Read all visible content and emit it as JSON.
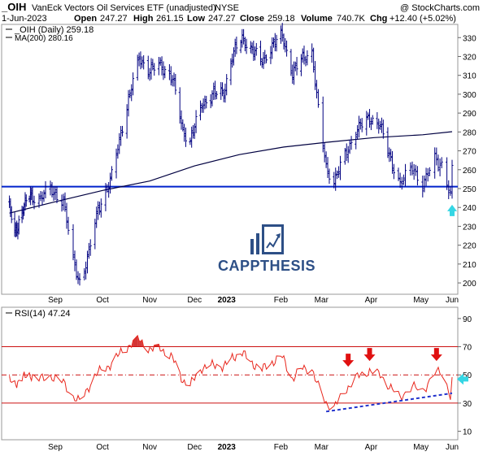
{
  "header": {
    "symbol": "_OIH",
    "name": "VanEck Vectors Oil Services ETF (unadjusted)",
    "exchange": "NYSE",
    "credit": "@ StockCharts.com",
    "date": "1-Jun-2023",
    "open_label": "Open",
    "open": "247.27",
    "high_label": "High",
    "high": "261.15",
    "low_label": "Low",
    "low": "247.27",
    "close_label": "Close",
    "close": "259.18",
    "volume_label": "Volume",
    "volume": "740.7K",
    "chg_label": "Chg",
    "chg": "+12.40 (+5.02%)"
  },
  "legend": {
    "price": "_OIH (Daily) 259.18",
    "ma": "MA(200) 280.16",
    "rsi": "RSI(14) 47.24"
  },
  "watermark": "CAPPTHESIS",
  "colors": {
    "price_bars": "#000080",
    "ma_line": "#000040",
    "support_line": "#0022cc",
    "rsi_line": "#e8261c",
    "rsi_band": "#cc1111",
    "trendline": "#2233cc",
    "arrow_red": "#e01010",
    "arrow_cyan": "#35d6e4",
    "logo": "#2d4f86"
  },
  "chart_data": [
    {
      "type": "ohlc",
      "title": "_OIH (Daily) 259.18",
      "x_ticks": [
        "Sep",
        "Oct",
        "Nov",
        "Dec",
        "2023",
        "Feb",
        "Mar",
        "Apr",
        "May",
        "Jun"
      ],
      "y_ticks": [
        200,
        210,
        220,
        230,
        240,
        250,
        260,
        270,
        280,
        290,
        300,
        310,
        320,
        330
      ],
      "ylim": [
        194,
        337
      ],
      "grid": false,
      "price_anchors": [
        {
          "date": "2022-08-10",
          "close": 240
        },
        {
          "date": "2022-08-15",
          "close": 226
        },
        {
          "date": "2022-08-22",
          "close": 238
        },
        {
          "date": "2022-08-30",
          "close": 247
        },
        {
          "date": "2022-09-05",
          "close": 244
        },
        {
          "date": "2022-09-12",
          "close": 250
        },
        {
          "date": "2022-09-20",
          "close": 243
        },
        {
          "date": "2022-09-26",
          "close": 212
        },
        {
          "date": "2022-09-30",
          "close": 201
        },
        {
          "date": "2022-10-05",
          "close": 212
        },
        {
          "date": "2022-10-12",
          "close": 240
        },
        {
          "date": "2022-10-20",
          "close": 253
        },
        {
          "date": "2022-10-27",
          "close": 280
        },
        {
          "date": "2022-11-03",
          "close": 303
        },
        {
          "date": "2022-11-08",
          "close": 320
        },
        {
          "date": "2022-11-15",
          "close": 312
        },
        {
          "date": "2022-11-22",
          "close": 316
        },
        {
          "date": "2022-11-30",
          "close": 308
        },
        {
          "date": "2022-12-07",
          "close": 281
        },
        {
          "date": "2022-12-12",
          "close": 275
        },
        {
          "date": "2022-12-20",
          "close": 295
        },
        {
          "date": "2022-12-28",
          "close": 300
        },
        {
          "date": "2023-01-04",
          "close": 301
        },
        {
          "date": "2023-01-10",
          "close": 320
        },
        {
          "date": "2023-01-17",
          "close": 330
        },
        {
          "date": "2023-01-24",
          "close": 323
        },
        {
          "date": "2023-01-31",
          "close": 318
        },
        {
          "date": "2023-02-07",
          "close": 325
        },
        {
          "date": "2023-02-14",
          "close": 332
        },
        {
          "date": "2023-02-21",
          "close": 310
        },
        {
          "date": "2023-02-28",
          "close": 320
        },
        {
          "date": "2023-03-06",
          "close": 322
        },
        {
          "date": "2023-03-09",
          "close": 298
        },
        {
          "date": "2023-03-15",
          "close": 262
        },
        {
          "date": "2023-03-20",
          "close": 253
        },
        {
          "date": "2023-03-28",
          "close": 270
        },
        {
          "date": "2023-04-03",
          "close": 280
        },
        {
          "date": "2023-04-12",
          "close": 288
        },
        {
          "date": "2023-04-19",
          "close": 283
        },
        {
          "date": "2023-04-25",
          "close": 268
        },
        {
          "date": "2023-05-02",
          "close": 252
        },
        {
          "date": "2023-05-09",
          "close": 262
        },
        {
          "date": "2023-05-15",
          "close": 251
        },
        {
          "date": "2023-05-22",
          "close": 266
        },
        {
          "date": "2023-05-26",
          "close": 263
        },
        {
          "date": "2023-05-31",
          "close": 246
        },
        {
          "date": "2023-06-01",
          "close": 259.18
        }
      ],
      "series": [
        {
          "name": "MA(200) 280.16",
          "type": "line",
          "points": [
            {
              "date": "2022-08-10",
              "value": 237
            },
            {
              "date": "2022-09-15",
              "value": 243
            },
            {
              "date": "2022-10-15",
              "value": 249
            },
            {
              "date": "2022-11-15",
              "value": 254
            },
            {
              "date": "2022-12-15",
              "value": 262
            },
            {
              "date": "2023-01-15",
              "value": 268
            },
            {
              "date": "2023-02-15",
              "value": 272
            },
            {
              "date": "2023-03-15",
              "value": 274.5
            },
            {
              "date": "2023-04-15",
              "value": 277
            },
            {
              "date": "2023-05-15",
              "value": 278.5
            },
            {
              "date": "2023-06-01",
              "value": 280.16
            }
          ]
        },
        {
          "name": "",
          "type": "horizontal",
          "value": 251
        }
      ]
    },
    {
      "type": "line",
      "title": "RSI(14) 47.24",
      "x_ticks": [
        "Sep",
        "Oct",
        "Nov",
        "Dec",
        "2023",
        "Feb",
        "Mar",
        "Apr",
        "May",
        "Jun"
      ],
      "y_ticks": [
        10,
        30,
        50,
        70,
        90
      ],
      "ylim": [
        4,
        98
      ],
      "reference_lines": [
        30,
        50,
        70
      ],
      "series": [
        {
          "name": "RSI(14) 47.24",
          "points": [
            {
              "date": "2022-08-10",
              "value": 46
            },
            {
              "date": "2022-08-15",
              "value": 43
            },
            {
              "date": "2022-08-22",
              "value": 48
            },
            {
              "date": "2022-08-30",
              "value": 50
            },
            {
              "date": "2022-09-05",
              "value": 47
            },
            {
              "date": "2022-09-12",
              "value": 49
            },
            {
              "date": "2022-09-20",
              "value": 45
            },
            {
              "date": "2022-09-26",
              "value": 34
            },
            {
              "date": "2022-09-30",
              "value": 31
            },
            {
              "date": "2022-10-05",
              "value": 40
            },
            {
              "date": "2022-10-12",
              "value": 52
            },
            {
              "date": "2022-10-20",
              "value": 57
            },
            {
              "date": "2022-10-27",
              "value": 66
            },
            {
              "date": "2022-11-03",
              "value": 72
            },
            {
              "date": "2022-11-08",
              "value": 75
            },
            {
              "date": "2022-11-15",
              "value": 68
            },
            {
              "date": "2022-11-22",
              "value": 69
            },
            {
              "date": "2022-11-30",
              "value": 62
            },
            {
              "date": "2022-12-07",
              "value": 46
            },
            {
              "date": "2022-12-12",
              "value": 43
            },
            {
              "date": "2022-12-20",
              "value": 55
            },
            {
              "date": "2022-12-28",
              "value": 57
            },
            {
              "date": "2023-01-04",
              "value": 56
            },
            {
              "date": "2023-01-10",
              "value": 62
            },
            {
              "date": "2023-01-17",
              "value": 66
            },
            {
              "date": "2023-01-24",
              "value": 58
            },
            {
              "date": "2023-01-31",
              "value": 54
            },
            {
              "date": "2023-02-07",
              "value": 59
            },
            {
              "date": "2023-02-14",
              "value": 63
            },
            {
              "date": "2023-02-21",
              "value": 47
            },
            {
              "date": "2023-02-28",
              "value": 55
            },
            {
              "date": "2023-03-06",
              "value": 54
            },
            {
              "date": "2023-03-09",
              "value": 44
            },
            {
              "date": "2023-03-15",
              "value": 30
            },
            {
              "date": "2023-03-20",
              "value": 27
            },
            {
              "date": "2023-03-28",
              "value": 40
            },
            {
              "date": "2023-04-03",
              "value": 48
            },
            {
              "date": "2023-04-12",
              "value": 53
            },
            {
              "date": "2023-04-19",
              "value": 50
            },
            {
              "date": "2023-04-25",
              "value": 42
            },
            {
              "date": "2023-05-02",
              "value": 34
            },
            {
              "date": "2023-05-09",
              "value": 42
            },
            {
              "date": "2023-05-15",
              "value": 38
            },
            {
              "date": "2023-05-22",
              "value": 52
            },
            {
              "date": "2023-05-26",
              "value": 51
            },
            {
              "date": "2023-05-31",
              "value": 36
            },
            {
              "date": "2023-06-01",
              "value": 47.24
            }
          ]
        },
        {
          "name": "",
          "type": "trendline",
          "points": [
            {
              "date": "2023-03-15",
              "value": 24
            },
            {
              "date": "2023-06-01",
              "value": 37
            }
          ]
        }
      ],
      "markers": [
        {
          "type": "down-arrow",
          "date": "2023-03-29",
          "value": 57
        },
        {
          "type": "down-arrow",
          "date": "2023-04-12",
          "value": 61
        },
        {
          "type": "down-arrow",
          "date": "2023-05-23",
          "value": 61
        },
        {
          "type": "left-arrow",
          "date": "2023-06-01",
          "value": 47
        }
      ]
    }
  ]
}
